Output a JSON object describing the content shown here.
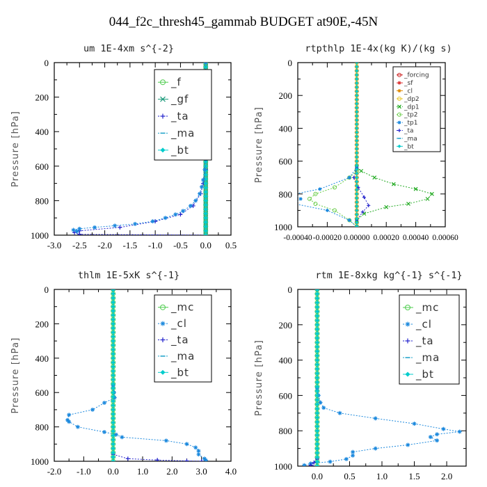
{
  "title": "044_f2c_thresh45_gammab  BUDGET at90E,-45N",
  "chart_data": [
    {
      "type": "line",
      "title": "um  1E-4xm s^{-2}",
      "ylabel": "Pressure [hPa]",
      "xlim": [
        -3.0,
        0.5
      ],
      "ylim": [
        1000,
        0
      ],
      "xticks": [
        "-3.0",
        "-2.5",
        "-2.0",
        "-1.5",
        "-1.0",
        "-0.5",
        "0.0",
        "0.5"
      ],
      "yticks": [
        "0",
        "200",
        "400",
        "600",
        "800",
        "1000"
      ],
      "legend_size": "large",
      "grid": false,
      "series": [
        {
          "name": "_f",
          "color": "#4ccc4c",
          "marker": "o",
          "dash": false,
          "points": [
            [
              0,
              0
            ],
            [
              0,
              1000
            ]
          ]
        },
        {
          "name": "_gf",
          "color": "#1a9a7a",
          "marker": "x",
          "dash": false,
          "points": [
            [
              0,
              0
            ],
            [
              0,
              1000
            ]
          ]
        },
        {
          "name": "_ta",
          "color": "#2222cc",
          "marker": "+",
          "dash": true,
          "points": [
            [
              0,
              620
            ],
            [
              -0.05,
              700
            ],
            [
              -0.1,
              760
            ],
            [
              -0.25,
              830
            ],
            [
              -0.5,
              880
            ],
            [
              -1.0,
              920
            ],
            [
              -1.7,
              955
            ],
            [
              -2.5,
              975
            ],
            [
              -2.6,
              985
            ],
            [
              -2.5,
              995
            ],
            [
              0,
              1000
            ]
          ]
        },
        {
          "name": "_ma",
          "color": "#1aa0c8",
          "marker": "-",
          "dash": true,
          "points": [
            [
              0,
              0
            ],
            [
              0,
              1000
            ]
          ]
        },
        {
          "name": "_bt",
          "color": "#00cccc",
          "marker": "d",
          "dash": false,
          "points": [
            [
              0,
              0
            ],
            [
              0,
              1000
            ]
          ]
        },
        {
          "name": "",
          "color": "#1a88dd",
          "marker": "*",
          "dash": true,
          "points": [
            [
              0,
              0
            ],
            [
              0,
              560
            ],
            [
              -0.02,
              620
            ],
            [
              -0.05,
              680
            ],
            [
              -0.08,
              720
            ],
            [
              -0.12,
              760
            ],
            [
              -0.2,
              800
            ],
            [
              -0.3,
              830
            ],
            [
              -0.45,
              860
            ],
            [
              -0.6,
              880
            ],
            [
              -0.8,
              900
            ],
            [
              -1.05,
              920
            ],
            [
              -1.4,
              935
            ],
            [
              -1.8,
              945
            ],
            [
              -2.2,
              955
            ],
            [
              -2.5,
              963
            ],
            [
              -2.62,
              970
            ],
            [
              -2.55,
              978
            ]
          ]
        }
      ]
    },
    {
      "type": "line",
      "title": "rtpthlp  1E-4x(kg K)/(kg s)",
      "ylabel": "Pressure [hPa]",
      "xlim": [
        -0.0004,
        0.0006
      ],
      "ylim": [
        1000,
        0
      ],
      "xticks": [
        "-0.00040",
        "-0.00020",
        "0.00000",
        "0.00020",
        "0.00040",
        "0.00060"
      ],
      "yticks": [
        "0",
        "200",
        "400",
        "600",
        "800",
        "1000"
      ],
      "legend_size": "small",
      "grid": false,
      "series": [
        {
          "name": "_forcing",
          "color": "#cc2222",
          "marker": "o",
          "dash": false,
          "points": [
            [
              0,
              0
            ],
            [
              0,
              1000
            ]
          ]
        },
        {
          "name": "_sf",
          "color": "#dd3333",
          "marker": "*",
          "dash": false,
          "points": [
            [
              0,
              0
            ],
            [
              0,
              1000
            ]
          ]
        },
        {
          "name": "_cl",
          "color": "#e08a00",
          "marker": "*",
          "dash": false,
          "points": [
            [
              0,
              0
            ],
            [
              0,
              1000
            ]
          ]
        },
        {
          "name": "_dp2",
          "color": "#e8c830",
          "marker": "o",
          "dash": false,
          "points": [
            [
              0,
              0
            ],
            [
              0,
              1000
            ]
          ]
        },
        {
          "name": "_dp1",
          "color": "#22aa22",
          "marker": "x",
          "dash": true,
          "points": [
            [
              0,
              640
            ],
            [
              3e-05,
              660
            ],
            [
              0.00012,
              700
            ],
            [
              0.00025,
              740
            ],
            [
              0.0004,
              770
            ],
            [
              0.00051,
              800
            ],
            [
              0.00048,
              830
            ],
            [
              0.00035,
              860
            ],
            [
              0.0002,
              880
            ],
            [
              5e-05,
              920
            ],
            [
              0,
              960
            ],
            [
              0,
              1000
            ]
          ]
        },
        {
          "name": "_tp2",
          "color": "#66cc44",
          "marker": "o",
          "dash": true,
          "points": [
            [
              0,
              660
            ],
            [
              -5e-05,
              700
            ],
            [
              -0.00015,
              760
            ],
            [
              -0.00028,
              800
            ],
            [
              -0.00032,
              830
            ],
            [
              -0.00028,
              860
            ],
            [
              -0.00015,
              900
            ],
            [
              -5e-05,
              960
            ],
            [
              0,
              1000
            ]
          ]
        },
        {
          "name": "_tp1",
          "color": "#1a88dd",
          "marker": "*",
          "dash": true,
          "points": [
            [
              0,
              640
            ],
            [
              -5e-05,
              700
            ],
            [
              -0.00025,
              770
            ],
            [
              -0.00042,
              800
            ],
            [
              -0.00038,
              830
            ],
            [
              -0.00042,
              860
            ],
            [
              -0.0002,
              900
            ],
            [
              -5e-05,
              960
            ],
            [
              0,
              1000
            ]
          ]
        },
        {
          "name": "_ta",
          "color": "#2222cc",
          "marker": "+",
          "dash": true,
          "points": [
            [
              0,
              640
            ],
            [
              -2e-05,
              700
            ],
            [
              1e-05,
              760
            ],
            [
              5e-05,
              820
            ],
            [
              8e-05,
              870
            ],
            [
              4e-05,
              910
            ],
            [
              0,
              960
            ],
            [
              0,
              1000
            ]
          ]
        },
        {
          "name": "_ma",
          "color": "#1aa0c8",
          "marker": "-",
          "dash": true,
          "points": [
            [
              0,
              0
            ],
            [
              0,
              1000
            ]
          ]
        },
        {
          "name": "_bt",
          "color": "#00cccc",
          "marker": "d",
          "dash": false,
          "points": [
            [
              0,
              0
            ],
            [
              0,
              1000
            ]
          ]
        }
      ]
    },
    {
      "type": "line",
      "title": "thlm  1E-5xK s^{-1}",
      "ylabel": "Pressure [hPa]",
      "xlim": [
        -2.0,
        4.0
      ],
      "ylim": [
        1000,
        0
      ],
      "xticks": [
        "-2.0",
        "-1.0",
        "0.0",
        "1.0",
        "2.0",
        "3.0",
        "4.0"
      ],
      "yticks": [
        "0",
        "200",
        "400",
        "600",
        "800",
        "1000"
      ],
      "legend_size": "large",
      "grid": false,
      "series": [
        {
          "name": "_mc",
          "color": "#4ccc4c",
          "marker": "o",
          "dash": false,
          "points": [
            [
              0,
              0
            ],
            [
              0,
              1000
            ]
          ]
        },
        {
          "name": "_cl",
          "color": "#1a88dd",
          "marker": "*",
          "dash": true,
          "points": [
            [
              0,
              0
            ],
            [
              0,
              560
            ],
            [
              0.03,
              600
            ],
            [
              0.05,
              630
            ],
            [
              -0.3,
              660
            ],
            [
              -0.7,
              700
            ],
            [
              -1.5,
              730
            ],
            [
              -1.55,
              760
            ],
            [
              -1.5,
              770
            ],
            [
              -1.2,
              800
            ],
            [
              -0.3,
              830
            ],
            [
              0.1,
              845
            ],
            [
              0.3,
              860
            ],
            [
              1.8,
              880
            ],
            [
              2.5,
              900
            ],
            [
              2.8,
              920
            ],
            [
              2.9,
              940
            ],
            [
              2.9,
              960
            ],
            [
              3.1,
              985
            ],
            [
              3.15,
              995
            ]
          ]
        },
        {
          "name": "_ta",
          "color": "#2222cc",
          "marker": "+",
          "dash": true,
          "points": [
            [
              0,
              960
            ],
            [
              0.5,
              985
            ],
            [
              1.5,
              993
            ],
            [
              2.5,
              998
            ],
            [
              3.0,
              1000
            ]
          ]
        },
        {
          "name": "_ma",
          "color": "#1aa0c8",
          "marker": "-",
          "dash": true,
          "points": [
            [
              0,
              0
            ],
            [
              0,
              1000
            ]
          ]
        },
        {
          "name": "_bt",
          "color": "#00cccc",
          "marker": "d",
          "dash": false,
          "points": [
            [
              0,
              0
            ],
            [
              0,
              1000
            ]
          ]
        }
      ]
    },
    {
      "type": "line",
      "title": "rtm  1E-8xkg kg^{-1} s^{-1}",
      "ylabel": "Pressure [hPa]",
      "xlim": [
        -0.3,
        2.3
      ],
      "ylim": [
        1000,
        0
      ],
      "xticks": [
        "0.0",
        "0.5",
        "1.0",
        "1.5",
        "2.0"
      ],
      "xtick_values": [
        0.0,
        0.5,
        1.0,
        1.5,
        2.0
      ],
      "yticks": [
        "0",
        "200",
        "400",
        "600",
        "800",
        "1000"
      ],
      "legend_size": "large",
      "grid": false,
      "series": [
        {
          "name": "_mc",
          "color": "#4ccc4c",
          "marker": "o",
          "dash": false,
          "points": [
            [
              0,
              0
            ],
            [
              0,
              1000
            ]
          ]
        },
        {
          "name": "_cl",
          "color": "#1a88dd",
          "marker": "*",
          "dash": true,
          "points": [
            [
              0,
              0
            ],
            [
              0,
              560
            ],
            [
              0.02,
              600
            ],
            [
              0.05,
              640
            ],
            [
              0.1,
              670
            ],
            [
              0.35,
              700
            ],
            [
              0.9,
              730
            ],
            [
              1.5,
              760
            ],
            [
              1.95,
              790
            ],
            [
              2.2,
              805
            ],
            [
              1.85,
              820
            ],
            [
              1.75,
              835
            ],
            [
              1.85,
              855
            ],
            [
              1.4,
              880
            ],
            [
              0.9,
              900
            ],
            [
              0.55,
              920
            ],
            [
              0.55,
              940
            ],
            [
              0.45,
              960
            ],
            [
              0.2,
              975
            ],
            [
              -0.1,
              985
            ],
            [
              -0.2,
              995
            ]
          ]
        },
        {
          "name": "_ta",
          "color": "#2222cc",
          "marker": "+",
          "dash": true,
          "points": [
            [
              0,
              960
            ],
            [
              -0.05,
              980
            ],
            [
              -0.1,
              995
            ],
            [
              0,
              1000
            ]
          ]
        },
        {
          "name": "_ma",
          "color": "#1aa0c8",
          "marker": "-",
          "dash": true,
          "points": [
            [
              0,
              0
            ],
            [
              0,
              1000
            ]
          ]
        },
        {
          "name": "_bt",
          "color": "#00cccc",
          "marker": "d",
          "dash": false,
          "points": [
            [
              0,
              0
            ],
            [
              0,
              1000
            ]
          ]
        }
      ]
    }
  ]
}
